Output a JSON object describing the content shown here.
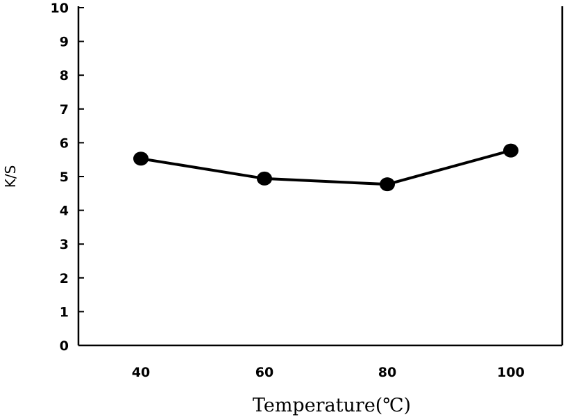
{
  "chart_data": {
    "type": "line",
    "title": "",
    "xlabel": "Temperature(℃)",
    "ylabel": "K/S",
    "categories": [
      "40",
      "60",
      "80",
      "100"
    ],
    "x": [
      40,
      60,
      80,
      100
    ],
    "series": [
      {
        "values": [
          5.53,
          4.94,
          4.77,
          5.77
        ],
        "color": "#000000",
        "marker": "circle"
      }
    ],
    "ylim": [
      0,
      10
    ],
    "yticks": [
      "0",
      "1",
      "2",
      "3",
      "4",
      "5",
      "6",
      "7",
      "8",
      "9",
      "10"
    ],
    "grid": false,
    "legend": "none"
  }
}
